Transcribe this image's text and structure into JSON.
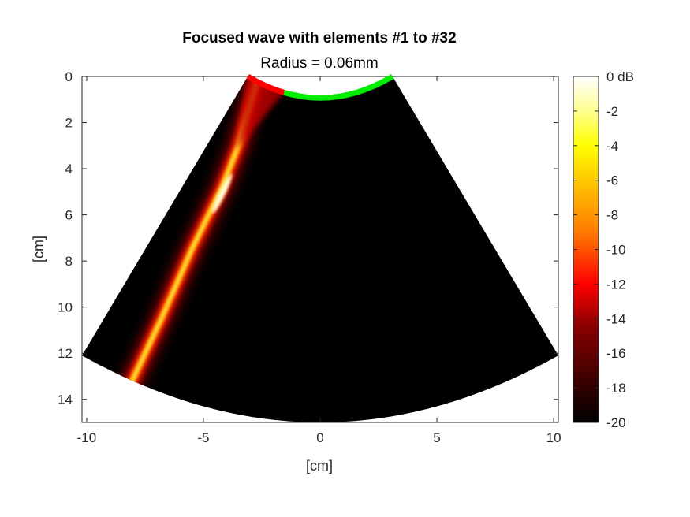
{
  "chart_data": {
    "type": "heatmap",
    "title": "Focused wave with elements #1 to #32",
    "subtitle": "Radius = 0.06mm",
    "xlabel": "[cm]",
    "ylabel": "[cm]",
    "xlim": [
      -10.2,
      10.2
    ],
    "ylim": [
      0,
      15
    ],
    "y_reversed": true,
    "x_ticks": [
      -10,
      -5,
      0,
      5,
      10
    ],
    "x_tick_labels": [
      "-10",
      "-5",
      "0",
      "5",
      "10"
    ],
    "y_ticks": [
      0,
      2,
      4,
      6,
      8,
      10,
      12,
      14
    ],
    "y_tick_labels": [
      "0",
      "2",
      "4",
      "6",
      "8",
      "10",
      "12",
      "14"
    ],
    "colormap": "hot",
    "colorbar": {
      "range": [
        -20,
        0
      ],
      "ticks": [
        0,
        -2,
        -4,
        -6,
        -8,
        -10,
        -12,
        -14,
        -16,
        -18,
        -20
      ],
      "tick_labels": [
        "0 dB",
        "-2",
        "-4",
        "-6",
        "-8",
        "-10",
        "-12",
        "-14",
        "-16",
        "-18",
        "-20"
      ]
    },
    "transducer": {
      "type": "convex",
      "radius_cm": 3.1,
      "active_elements_color": "#ff0000",
      "inactive_elements_color": "#00ee00"
    },
    "sector": {
      "apex_cm": [
        0,
        -2.2
      ],
      "edge_left_top_cm": [
        -3.1,
        0
      ],
      "edge_right_top_cm": [
        3.1,
        0
      ],
      "edge_left_bottom_cm": [
        -10.2,
        12.1
      ],
      "edge_right_bottom_cm": [
        10.2,
        12.1
      ],
      "bottom_depth_cm": 15
    },
    "beam": {
      "path_cm": [
        [
          -2.7,
          0.2
        ],
        [
          -3.5,
          3.0
        ],
        [
          -4.2,
          4.8
        ],
        [
          -5.5,
          7.5
        ],
        [
          -6.8,
          10.5
        ],
        [
          -8.1,
          13.3
        ]
      ],
      "focus_cm": [
        -4.2,
        4.8
      ],
      "peak_db": 0,
      "floor_db": -20
    }
  }
}
